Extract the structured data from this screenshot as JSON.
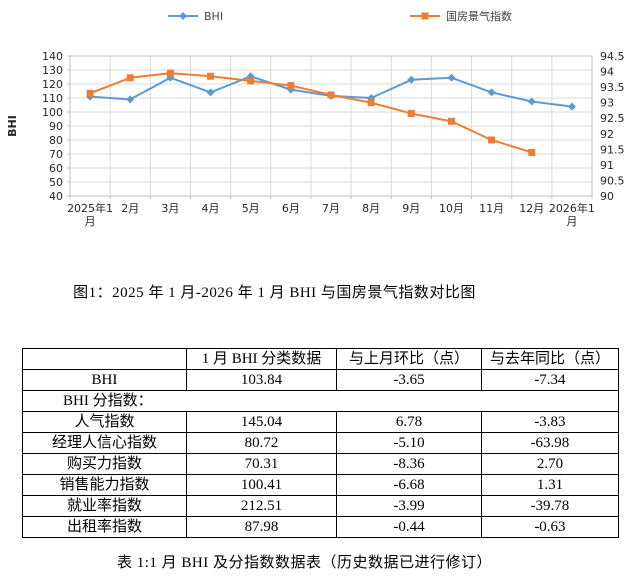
{
  "figure_caption": "图1：2025 年 1 月-2026 年 1 月 BHI 与国房景气指数对比图",
  "table_caption": "表 1:1 月 BHI 及分指数数据表（历史数据已进行修订）",
  "colors": {
    "bhi_line": "#5B9BD5",
    "prosperity_line": "#ED7D31",
    "gridline": "#D9D9D9",
    "plot_border": "#BFBFBF",
    "axis_text": "#262626",
    "legend_text": "#404040"
  },
  "chart_data": {
    "type": "line",
    "title": "",
    "ylabel": "BHI",
    "legend_position": "top",
    "grid": true,
    "categories": [
      "2025年1月",
      "2月",
      "3月",
      "4月",
      "5月",
      "6月",
      "7月",
      "8月",
      "9月",
      "10月",
      "11月",
      "12月",
      "2026年1月"
    ],
    "series": [
      {
        "name": "BHI",
        "axis": "left",
        "color": "#5B9BD5",
        "marker": "diamond",
        "values": [
          111,
          109,
          124.5,
          114,
          125.5,
          116,
          111.5,
          110,
          123,
          124.5,
          114,
          107.49,
          103.84
        ]
      },
      {
        "name": "国房景气指数",
        "axis": "right",
        "color": "#ED7D31",
        "marker": "square",
        "values": [
          93.3,
          93.8,
          93.95,
          93.85,
          93.7,
          93.55,
          93.25,
          93.0,
          92.65,
          92.4,
          91.8,
          91.4,
          null
        ]
      }
    ],
    "ylim_left": [
      40,
      140
    ],
    "ylim_right": [
      90,
      94.5
    ],
    "yticks_left": [
      140,
      130,
      120,
      110,
      100,
      90,
      80,
      70,
      60,
      50,
      40
    ],
    "yticks_right": [
      94.5,
      94,
      93.5,
      93,
      92.5,
      92,
      91.5,
      91,
      90.5,
      90
    ]
  },
  "table": {
    "headers": [
      "",
      "1 月 BHI 分类数据",
      "与上月环比（点）",
      "与去年同比（点）"
    ],
    "rows": [
      {
        "label": "BHI",
        "values": [
          "103.84",
          "-3.65",
          "-7.34"
        ]
      },
      {
        "label": "BHI 分指数：",
        "span": true,
        "values": []
      },
      {
        "label": "人气指数",
        "values": [
          "145.04",
          "6.78",
          "-3.83"
        ]
      },
      {
        "label": "经理人信心指数",
        "values": [
          "80.72",
          "-5.10",
          "-63.98"
        ]
      },
      {
        "label": "购买力指数",
        "values": [
          "70.31",
          "-8.36",
          "2.70"
        ]
      },
      {
        "label": "销售能力指数",
        "values": [
          "100.41",
          "-6.68",
          "1.31"
        ]
      },
      {
        "label": "就业率指数",
        "values": [
          "212.51",
          "-3.99",
          "-39.78"
        ]
      },
      {
        "label": "出租率指数",
        "values": [
          "87.98",
          "-0.44",
          "-0.63"
        ]
      }
    ]
  }
}
